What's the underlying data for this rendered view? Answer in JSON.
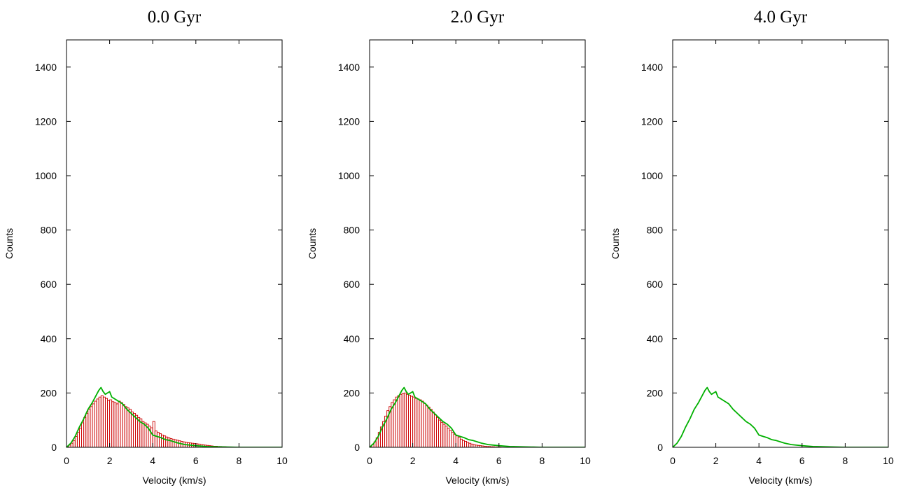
{
  "chart_data": [
    {
      "type": "bar",
      "title": "0.0 Gyr",
      "xlabel": "Velocity (km/s)",
      "ylabel": "Counts",
      "xlim": [
        0,
        10
      ],
      "ylim": [
        0,
        1500
      ],
      "xticks": [
        "0",
        "2",
        "4",
        "6",
        "8",
        "10"
      ],
      "yticks": [
        "0",
        "200",
        "400",
        "600",
        "800",
        "1000",
        "1200",
        "1400"
      ],
      "grid": false,
      "bin_width": 0.1,
      "series": [
        {
          "kind": "histogram",
          "color": "#cc0000",
          "bin_starts": [
            0.0,
            0.1,
            0.2,
            0.3,
            0.4,
            0.5,
            0.6,
            0.7,
            0.8,
            0.9,
            1.0,
            1.1,
            1.2,
            1.3,
            1.4,
            1.5,
            1.6,
            1.7,
            1.8,
            1.9,
            2.0,
            2.1,
            2.2,
            2.3,
            2.4,
            2.5,
            2.6,
            2.7,
            2.8,
            2.9,
            3.0,
            3.1,
            3.2,
            3.3,
            3.4,
            3.5,
            3.6,
            3.7,
            3.8,
            3.9,
            4.0,
            4.1,
            4.2,
            4.3,
            4.4,
            4.5,
            4.6,
            4.7,
            4.8,
            4.9,
            5.0,
            5.1,
            5.2,
            5.3,
            5.4,
            5.5,
            5.6,
            5.7,
            5.8,
            5.9,
            6.0,
            6.1,
            6.2,
            6.3,
            6.4,
            6.5,
            6.6,
            6.7,
            6.8,
            6.9,
            7.0,
            7.1,
            7.2,
            7.3,
            7.4,
            7.5
          ],
          "values": [
            3,
            8,
            15,
            25,
            40,
            55,
            70,
            90,
            110,
            125,
            140,
            150,
            160,
            170,
            178,
            185,
            190,
            185,
            180,
            172,
            175,
            168,
            165,
            160,
            170,
            165,
            158,
            150,
            145,
            140,
            130,
            125,
            118,
            110,
            105,
            95,
            90,
            85,
            78,
            72,
            95,
            60,
            55,
            50,
            45,
            42,
            38,
            35,
            32,
            30,
            28,
            26,
            24,
            22,
            20,
            18,
            17,
            16,
            15,
            14,
            13,
            12,
            10,
            9,
            8,
            7,
            6,
            5,
            4,
            4,
            3,
            3,
            2,
            2,
            1,
            1
          ]
        },
        {
          "kind": "line",
          "color": "#00b000",
          "x": [
            0.0,
            0.2,
            0.4,
            0.6,
            0.8,
            1.0,
            1.2,
            1.4,
            1.5,
            1.6,
            1.7,
            1.8,
            1.9,
            2.0,
            2.1,
            2.2,
            2.4,
            2.6,
            2.8,
            3.0,
            3.2,
            3.4,
            3.6,
            3.8,
            4.0,
            4.2,
            4.4,
            4.6,
            4.8,
            5.0,
            5.2,
            5.5,
            6.0,
            6.5,
            7.0,
            7.5,
            8.0,
            10.0
          ],
          "y": [
            0,
            15,
            40,
            75,
            105,
            140,
            165,
            195,
            210,
            220,
            205,
            195,
            200,
            205,
            185,
            180,
            170,
            160,
            140,
            125,
            110,
            95,
            85,
            70,
            45,
            40,
            35,
            28,
            25,
            20,
            15,
            10,
            6,
            3,
            2,
            1,
            0,
            0
          ]
        }
      ]
    },
    {
      "type": "bar",
      "title": "2.0 Gyr",
      "xlabel": "Velocity (km/s)",
      "ylabel": "Counts",
      "xlim": [
        0,
        10
      ],
      "ylim": [
        0,
        1500
      ],
      "xticks": [
        "0",
        "2",
        "4",
        "6",
        "8",
        "10"
      ],
      "yticks": [
        "0",
        "200",
        "400",
        "600",
        "800",
        "1000",
        "1200",
        "1400"
      ],
      "grid": false,
      "bin_width": 0.1,
      "series": [
        {
          "kind": "histogram",
          "color": "#cc0000",
          "bin_starts": [
            0.0,
            0.1,
            0.2,
            0.3,
            0.4,
            0.5,
            0.6,
            0.7,
            0.8,
            0.9,
            1.0,
            1.1,
            1.2,
            1.3,
            1.4,
            1.5,
            1.6,
            1.7,
            1.8,
            1.9,
            2.0,
            2.1,
            2.2,
            2.3,
            2.4,
            2.5,
            2.6,
            2.7,
            2.8,
            2.9,
            3.0,
            3.1,
            3.2,
            3.3,
            3.4,
            3.5,
            3.6,
            3.7,
            3.8,
            3.9,
            4.0,
            4.1,
            4.2,
            4.3,
            4.4,
            4.5,
            4.6,
            4.7,
            4.8,
            4.9,
            5.0,
            5.1,
            5.2,
            5.3,
            5.4,
            5.5,
            5.6,
            5.7,
            5.8,
            5.9,
            6.0
          ],
          "values": [
            4,
            10,
            20,
            35,
            55,
            75,
            95,
            115,
            135,
            150,
            165,
            175,
            185,
            190,
            195,
            198,
            200,
            195,
            192,
            188,
            185,
            180,
            178,
            175,
            170,
            162,
            155,
            148,
            140,
            130,
            120,
            110,
            100,
            92,
            85,
            78,
            70,
            62,
            55,
            48,
            42,
            36,
            30,
            25,
            22,
            18,
            15,
            12,
            10,
            8,
            7,
            6,
            5,
            4,
            3,
            3,
            2,
            2,
            1,
            1,
            1
          ]
        },
        {
          "kind": "line",
          "color": "#00b000",
          "x": [
            0.0,
            0.2,
            0.4,
            0.6,
            0.8,
            1.0,
            1.2,
            1.4,
            1.5,
            1.6,
            1.7,
            1.8,
            1.9,
            2.0,
            2.1,
            2.2,
            2.4,
            2.6,
            2.8,
            3.0,
            3.2,
            3.4,
            3.6,
            3.8,
            4.0,
            4.2,
            4.4,
            4.6,
            4.8,
            5.0,
            5.2,
            5.5,
            6.0,
            6.5,
            7.0,
            7.5,
            8.0,
            10.0
          ],
          "y": [
            0,
            15,
            40,
            75,
            105,
            140,
            165,
            195,
            210,
            220,
            205,
            195,
            200,
            205,
            185,
            180,
            170,
            160,
            140,
            125,
            110,
            95,
            85,
            70,
            45,
            40,
            35,
            28,
            25,
            20,
            15,
            10,
            6,
            3,
            2,
            1,
            0,
            0
          ]
        }
      ]
    },
    {
      "type": "line",
      "title": "4.0 Gyr",
      "xlabel": "Velocity (km/s)",
      "ylabel": "Counts",
      "xlim": [
        0,
        10
      ],
      "ylim": [
        0,
        1500
      ],
      "xticks": [
        "0",
        "2",
        "4",
        "6",
        "8",
        "10"
      ],
      "yticks": [
        "0",
        "200",
        "400",
        "600",
        "800",
        "1000",
        "1200",
        "1400"
      ],
      "grid": false,
      "bin_width": 0.1,
      "series": [
        {
          "kind": "line",
          "color": "#00b000",
          "x": [
            0.0,
            0.2,
            0.4,
            0.6,
            0.8,
            1.0,
            1.2,
            1.4,
            1.5,
            1.6,
            1.7,
            1.8,
            1.9,
            2.0,
            2.1,
            2.2,
            2.4,
            2.6,
            2.8,
            3.0,
            3.2,
            3.4,
            3.6,
            3.8,
            4.0,
            4.2,
            4.4,
            4.6,
            4.8,
            5.0,
            5.2,
            5.5,
            6.0,
            6.5,
            7.0,
            7.5,
            8.0,
            10.0
          ],
          "y": [
            0,
            15,
            40,
            75,
            105,
            140,
            165,
            195,
            210,
            220,
            205,
            195,
            200,
            205,
            185,
            180,
            170,
            160,
            140,
            125,
            110,
            95,
            85,
            70,
            45,
            40,
            35,
            28,
            25,
            20,
            15,
            10,
            6,
            3,
            2,
            1,
            0,
            0
          ]
        }
      ]
    }
  ]
}
